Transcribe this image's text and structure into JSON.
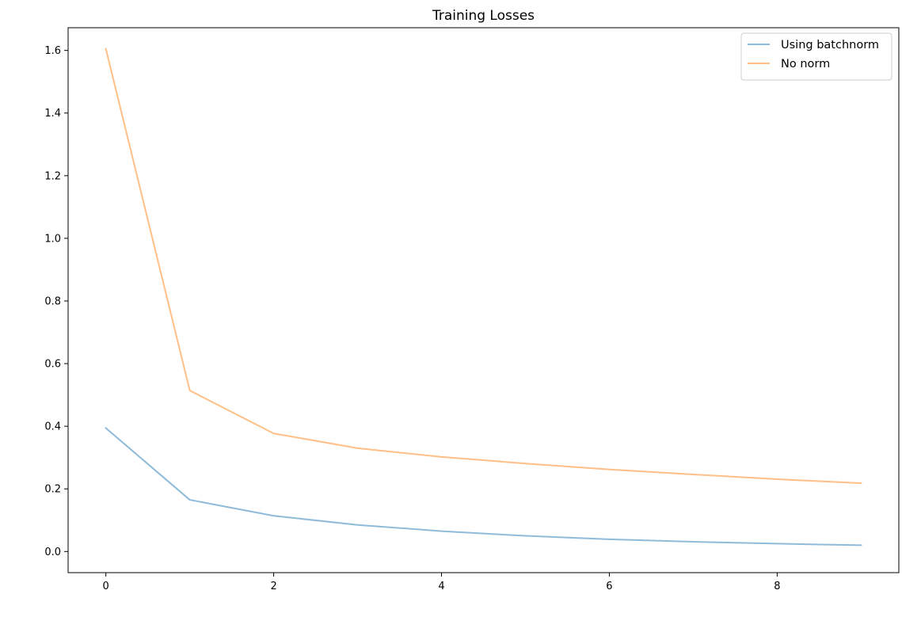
{
  "chart_data": {
    "type": "line",
    "title": "Training Losses",
    "xlabel": "",
    "ylabel": "",
    "xlim": [
      -0.45,
      9.45
    ],
    "ylim": [
      -0.0675,
      1.6725
    ],
    "xticks": [
      0,
      2,
      4,
      6,
      8
    ],
    "yticks": [
      0.0,
      0.2,
      0.4,
      0.6,
      0.8,
      1.0,
      1.2,
      1.4,
      1.6
    ],
    "x": [
      0,
      1,
      2,
      3,
      4,
      5,
      6,
      7,
      8,
      9
    ],
    "series": [
      {
        "name": "Using batchnorm",
        "color": "#1f77b4",
        "alpha": 0.5,
        "values": [
          0.394,
          0.165,
          0.114,
          0.085,
          0.065,
          0.05,
          0.039,
          0.031,
          0.025,
          0.02
        ]
      },
      {
        "name": "No norm",
        "color": "#ff7f0e",
        "alpha": 0.5,
        "values": [
          1.605,
          0.514,
          0.377,
          0.33,
          0.302,
          0.281,
          0.262,
          0.246,
          0.231,
          0.218
        ]
      }
    ],
    "grid": false,
    "legend_position": "top-right"
  }
}
